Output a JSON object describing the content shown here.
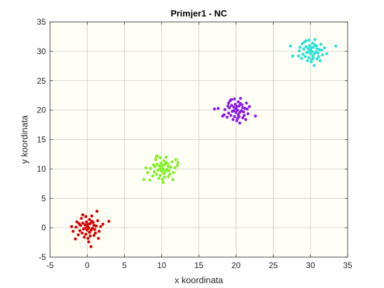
{
  "chart_data": {
    "type": "scatter",
    "title": "Primjer1 - NC",
    "xlabel": "x koordinata",
    "ylabel": "y koordinata",
    "xlim": [
      -5,
      35
    ],
    "ylim": [
      -5,
      35
    ],
    "xticks": [
      -5,
      0,
      5,
      10,
      15,
      20,
      25,
      30,
      35
    ],
    "yticks": [
      -5,
      0,
      5,
      10,
      15,
      20,
      25,
      30,
      35
    ],
    "grid": true,
    "series": [
      {
        "color": "#d40000",
        "points": [
          [
            0.0,
            0.2
          ],
          [
            -0.6,
            0.8
          ],
          [
            0.5,
            -0.4
          ],
          [
            1.2,
            0.3
          ],
          [
            -1.0,
            -0.5
          ],
          [
            0.3,
            1.4
          ],
          [
            -0.2,
            -1.1
          ],
          [
            0.8,
            0.9
          ],
          [
            -1.5,
            0.1
          ],
          [
            1.6,
            -0.6
          ],
          [
            0.1,
            -1.8
          ],
          [
            -0.8,
            1.6
          ],
          [
            0.6,
            2.0
          ],
          [
            -0.3,
            0.5
          ],
          [
            0.9,
            -1.3
          ],
          [
            -1.2,
            -1.2
          ],
          [
            1.4,
            1.2
          ],
          [
            0.2,
            0.0
          ],
          [
            -0.5,
            -0.2
          ],
          [
            0.4,
            0.7
          ],
          [
            -1.9,
            -0.6
          ],
          [
            2.1,
            0.6
          ],
          [
            0.7,
            -0.1
          ],
          [
            -0.9,
            0.4
          ],
          [
            1.1,
            -0.9
          ],
          [
            -0.1,
            1.0
          ],
          [
            0.3,
            -0.8
          ],
          [
            -0.4,
            -1.6
          ],
          [
            1.3,
            2.8
          ],
          [
            0.5,
            -3.2
          ],
          [
            2.9,
            1.1
          ],
          [
            -1.4,
            1.0
          ],
          [
            0.0,
            -0.4
          ],
          [
            -0.7,
            -0.9
          ],
          [
            1.8,
            0.2
          ],
          [
            -0.2,
            1.9
          ],
          [
            0.9,
            0.4
          ],
          [
            -1.1,
            0.7
          ],
          [
            0.2,
            -2.4
          ],
          [
            1.5,
            -1.8
          ],
          [
            -1.6,
            -1.9
          ],
          [
            0.6,
            1.1
          ],
          [
            -0.3,
            -0.1
          ],
          [
            1.0,
            -0.3
          ],
          [
            -0.6,
            2.2
          ],
          [
            0.1,
            0.6
          ],
          [
            0.4,
            -1.4
          ],
          [
            -2.1,
            0.2
          ]
        ]
      },
      {
        "color": "#80f020",
        "points": [
          [
            10.0,
            10.2
          ],
          [
            9.4,
            10.8
          ],
          [
            10.5,
            9.6
          ],
          [
            11.2,
            10.3
          ],
          [
            9.0,
            9.5
          ],
          [
            10.3,
            11.4
          ],
          [
            9.8,
            8.9
          ],
          [
            10.8,
            10.9
          ],
          [
            8.5,
            10.1
          ],
          [
            11.6,
            9.4
          ],
          [
            10.1,
            8.2
          ],
          [
            9.2,
            11.6
          ],
          [
            10.6,
            12.0
          ],
          [
            9.7,
            10.5
          ],
          [
            10.9,
            8.7
          ],
          [
            8.8,
            8.8
          ],
          [
            11.4,
            11.2
          ],
          [
            10.2,
            10.0
          ],
          [
            9.5,
            9.8
          ],
          [
            10.4,
            10.7
          ],
          [
            8.1,
            9.4
          ],
          [
            12.1,
            10.6
          ],
          [
            10.7,
            9.9
          ],
          [
            9.1,
            10.4
          ],
          [
            11.1,
            9.1
          ],
          [
            9.9,
            11.0
          ],
          [
            10.3,
            9.2
          ],
          [
            9.6,
            8.4
          ],
          [
            7.6,
            8.2
          ],
          [
            12.2,
            11.1
          ],
          [
            9.3,
            12.1
          ],
          [
            10.0,
            9.6
          ],
          [
            9.3,
            9.1
          ],
          [
            11.8,
            10.2
          ],
          [
            9.8,
            11.9
          ],
          [
            10.9,
            10.4
          ],
          [
            8.9,
            10.7
          ],
          [
            10.2,
            7.7
          ],
          [
            11.5,
            8.2
          ],
          [
            8.4,
            8.1
          ],
          [
            10.6,
            11.1
          ],
          [
            9.7,
            9.9
          ],
          [
            11.0,
            9.7
          ],
          [
            9.4,
            12.2
          ],
          [
            10.1,
            10.6
          ],
          [
            10.4,
            8.6
          ],
          [
            7.9,
            10.2
          ],
          [
            11.9,
            11.6
          ]
        ]
      },
      {
        "color": "#8a1ae6",
        "points": [
          [
            20.0,
            20.2
          ],
          [
            19.4,
            20.8
          ],
          [
            20.5,
            19.6
          ],
          [
            21.2,
            20.3
          ],
          [
            19.0,
            19.5
          ],
          [
            20.3,
            21.4
          ],
          [
            19.8,
            18.9
          ],
          [
            20.8,
            20.9
          ],
          [
            18.5,
            20.1
          ],
          [
            21.6,
            19.4
          ],
          [
            20.1,
            18.2
          ],
          [
            19.2,
            21.6
          ],
          [
            20.6,
            22.0
          ],
          [
            19.7,
            20.5
          ],
          [
            20.9,
            18.7
          ],
          [
            18.8,
            18.8
          ],
          [
            21.4,
            21.2
          ],
          [
            20.2,
            20.0
          ],
          [
            19.5,
            19.8
          ],
          [
            20.4,
            20.7
          ],
          [
            17.6,
            20.3
          ],
          [
            22.6,
            19.0
          ],
          [
            20.7,
            19.9
          ],
          [
            19.1,
            20.4
          ],
          [
            21.1,
            19.1
          ],
          [
            19.9,
            21.0
          ],
          [
            20.3,
            19.2
          ],
          [
            19.6,
            18.4
          ],
          [
            17.1,
            20.2
          ],
          [
            20.5,
            17.8
          ],
          [
            21.8,
            20.6
          ],
          [
            19.0,
            21.2
          ],
          [
            20.0,
            19.6
          ],
          [
            19.3,
            19.1
          ],
          [
            21.5,
            20.2
          ],
          [
            19.8,
            21.9
          ],
          [
            20.9,
            20.4
          ],
          [
            18.9,
            20.7
          ],
          [
            20.2,
            18.6
          ],
          [
            21.3,
            18.4
          ],
          [
            18.4,
            19.2
          ],
          [
            20.6,
            21.1
          ],
          [
            19.7,
            19.9
          ],
          [
            21.0,
            19.7
          ],
          [
            19.4,
            21.8
          ],
          [
            20.1,
            20.6
          ],
          [
            20.4,
            18.9
          ],
          [
            18.2,
            19.0
          ]
        ]
      },
      {
        "color": "#2ae0d4",
        "points": [
          [
            30.0,
            30.2
          ],
          [
            29.4,
            30.8
          ],
          [
            30.5,
            29.6
          ],
          [
            31.2,
            30.3
          ],
          [
            29.0,
            29.5
          ],
          [
            30.3,
            31.4
          ],
          [
            29.8,
            28.9
          ],
          [
            30.8,
            30.9
          ],
          [
            28.5,
            30.1
          ],
          [
            31.6,
            29.4
          ],
          [
            30.1,
            28.2
          ],
          [
            29.2,
            31.6
          ],
          [
            30.6,
            32.0
          ],
          [
            29.7,
            30.5
          ],
          [
            30.9,
            28.7
          ],
          [
            28.8,
            28.8
          ],
          [
            31.4,
            31.2
          ],
          [
            30.2,
            30.0
          ],
          [
            29.5,
            29.8
          ],
          [
            30.4,
            30.7
          ],
          [
            27.3,
            30.9
          ],
          [
            33.4,
            30.9
          ],
          [
            30.7,
            29.9
          ],
          [
            29.1,
            30.4
          ],
          [
            31.1,
            29.1
          ],
          [
            29.9,
            31.0
          ],
          [
            30.3,
            29.2
          ],
          [
            29.6,
            28.4
          ],
          [
            27.6,
            29.2
          ],
          [
            30.5,
            27.6
          ],
          [
            31.9,
            30.6
          ],
          [
            28.9,
            31.3
          ],
          [
            30.0,
            29.6
          ],
          [
            29.3,
            29.1
          ],
          [
            31.5,
            30.2
          ],
          [
            29.8,
            31.9
          ],
          [
            30.9,
            30.4
          ],
          [
            28.6,
            30.7
          ],
          [
            30.2,
            28.6
          ],
          [
            31.3,
            28.4
          ],
          [
            28.4,
            29.2
          ],
          [
            30.6,
            31.1
          ],
          [
            29.7,
            29.9
          ],
          [
            31.0,
            29.7
          ],
          [
            29.4,
            31.8
          ],
          [
            30.1,
            30.6
          ],
          [
            30.4,
            28.9
          ],
          [
            32.2,
            29.6
          ]
        ]
      }
    ]
  }
}
